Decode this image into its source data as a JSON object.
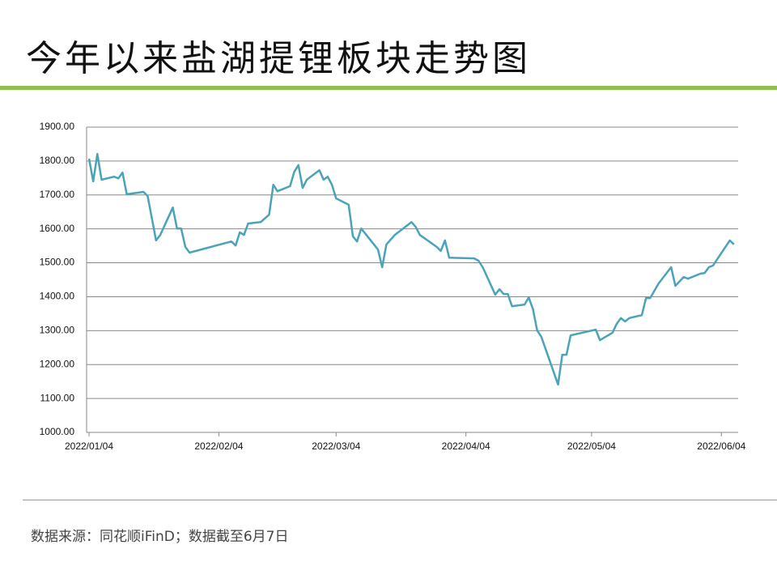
{
  "title": "今年以来盐湖提锂板块走势图",
  "source": "数据来源：同花顺iFinD；数据截至6月7日",
  "chart_data": {
    "type": "line",
    "x": [
      "2022/01/04",
      "2022/01/05",
      "2022/01/06",
      "2022/01/07",
      "2022/01/10",
      "2022/01/11",
      "2022/01/12",
      "2022/01/13",
      "2022/01/17",
      "2022/01/18",
      "2022/01/20",
      "2022/01/21",
      "2022/01/24",
      "2022/01/25",
      "2022/01/26",
      "2022/01/27",
      "2022/01/28",
      "2022/02/07",
      "2022/02/08",
      "2022/02/09",
      "2022/02/10",
      "2022/02/11",
      "2022/02/14",
      "2022/02/16",
      "2022/02/17",
      "2022/02/18",
      "2022/02/21",
      "2022/02/22",
      "2022/02/23",
      "2022/02/24",
      "2022/02/25",
      "2022/02/28",
      "2022/03/01",
      "2022/03/02",
      "2022/03/03",
      "2022/03/04",
      "2022/03/07",
      "2022/03/08",
      "2022/03/09",
      "2022/03/10",
      "2022/03/14",
      "2022/03/15",
      "2022/03/16",
      "2022/03/18",
      "2022/03/22",
      "2022/03/23",
      "2022/03/24",
      "2022/03/28",
      "2022/03/29",
      "2022/03/30",
      "2022/03/31",
      "2022/04/06",
      "2022/04/07",
      "2022/04/08",
      "2022/04/11",
      "2022/04/12",
      "2022/04/13",
      "2022/04/14",
      "2022/04/15",
      "2022/04/18",
      "2022/04/19",
      "2022/04/20",
      "2022/04/21",
      "2022/04/22",
      "2022/04/26",
      "2022/04/27",
      "2022/04/28",
      "2022/04/29",
      "2022/05/05",
      "2022/05/06",
      "2022/05/09",
      "2022/05/10",
      "2022/05/11",
      "2022/05/12",
      "2022/05/13",
      "2022/05/16",
      "2022/05/17",
      "2022/05/18",
      "2022/05/20",
      "2022/05/23",
      "2022/05/24",
      "2022/05/26",
      "2022/05/27",
      "2022/05/30",
      "2022/05/31",
      "2022/06/01",
      "2022/06/02",
      "2022/06/06",
      "2022/06/07"
    ],
    "series": [
      {
        "color": "#4aa3b8",
        "values": [
          1807,
          1740,
          1821,
          1745,
          1754,
          1749,
          1766,
          1702,
          1709,
          1697,
          1566,
          1582,
          1663,
          1601,
          1601,
          1547,
          1530,
          1563,
          1551,
          1590,
          1582,
          1616,
          1620,
          1642,
          1730,
          1711,
          1726,
          1768,
          1788,
          1721,
          1745,
          1773,
          1745,
          1754,
          1730,
          1690,
          1671,
          1578,
          1563,
          1601,
          1539,
          1487,
          1554,
          1582,
          1620,
          1606,
          1582,
          1547,
          1535,
          1566,
          1515,
          1513,
          1506,
          1487,
          1406,
          1422,
          1408,
          1408,
          1372,
          1377,
          1398,
          1363,
          1301,
          1282,
          1141,
          1229,
          1229,
          1286,
          1303,
          1272,
          1294,
          1320,
          1337,
          1327,
          1337,
          1346,
          1396,
          1396,
          1439,
          1487,
          1432,
          1458,
          1453,
          1468,
          1470,
          1487,
          1492,
          1566,
          1554
        ]
      }
    ],
    "xlim": [
      "2022/01/04",
      "2022/06/08"
    ],
    "xticks": [
      "2022/01/04",
      "2022/02/04",
      "2022/03/04",
      "2022/04/04",
      "2022/05/04",
      "2022/06/04"
    ],
    "ylim": [
      1000,
      1900
    ],
    "yticks": [
      {
        "value": 1000,
        "label": "1000.00"
      },
      {
        "value": 1100,
        "label": "1100.00"
      },
      {
        "value": 1200,
        "label": "1200.00"
      },
      {
        "value": 1300,
        "label": "1300.00"
      },
      {
        "value": 1400,
        "label": "1400.00"
      },
      {
        "value": 1500,
        "label": "1500.00"
      },
      {
        "value": 1600,
        "label": "1600.00"
      },
      {
        "value": 1700,
        "label": "1700.00"
      },
      {
        "value": 1800,
        "label": "1800.00"
      },
      {
        "value": 1900,
        "label": "1900.00"
      }
    ],
    "grid": true
  }
}
